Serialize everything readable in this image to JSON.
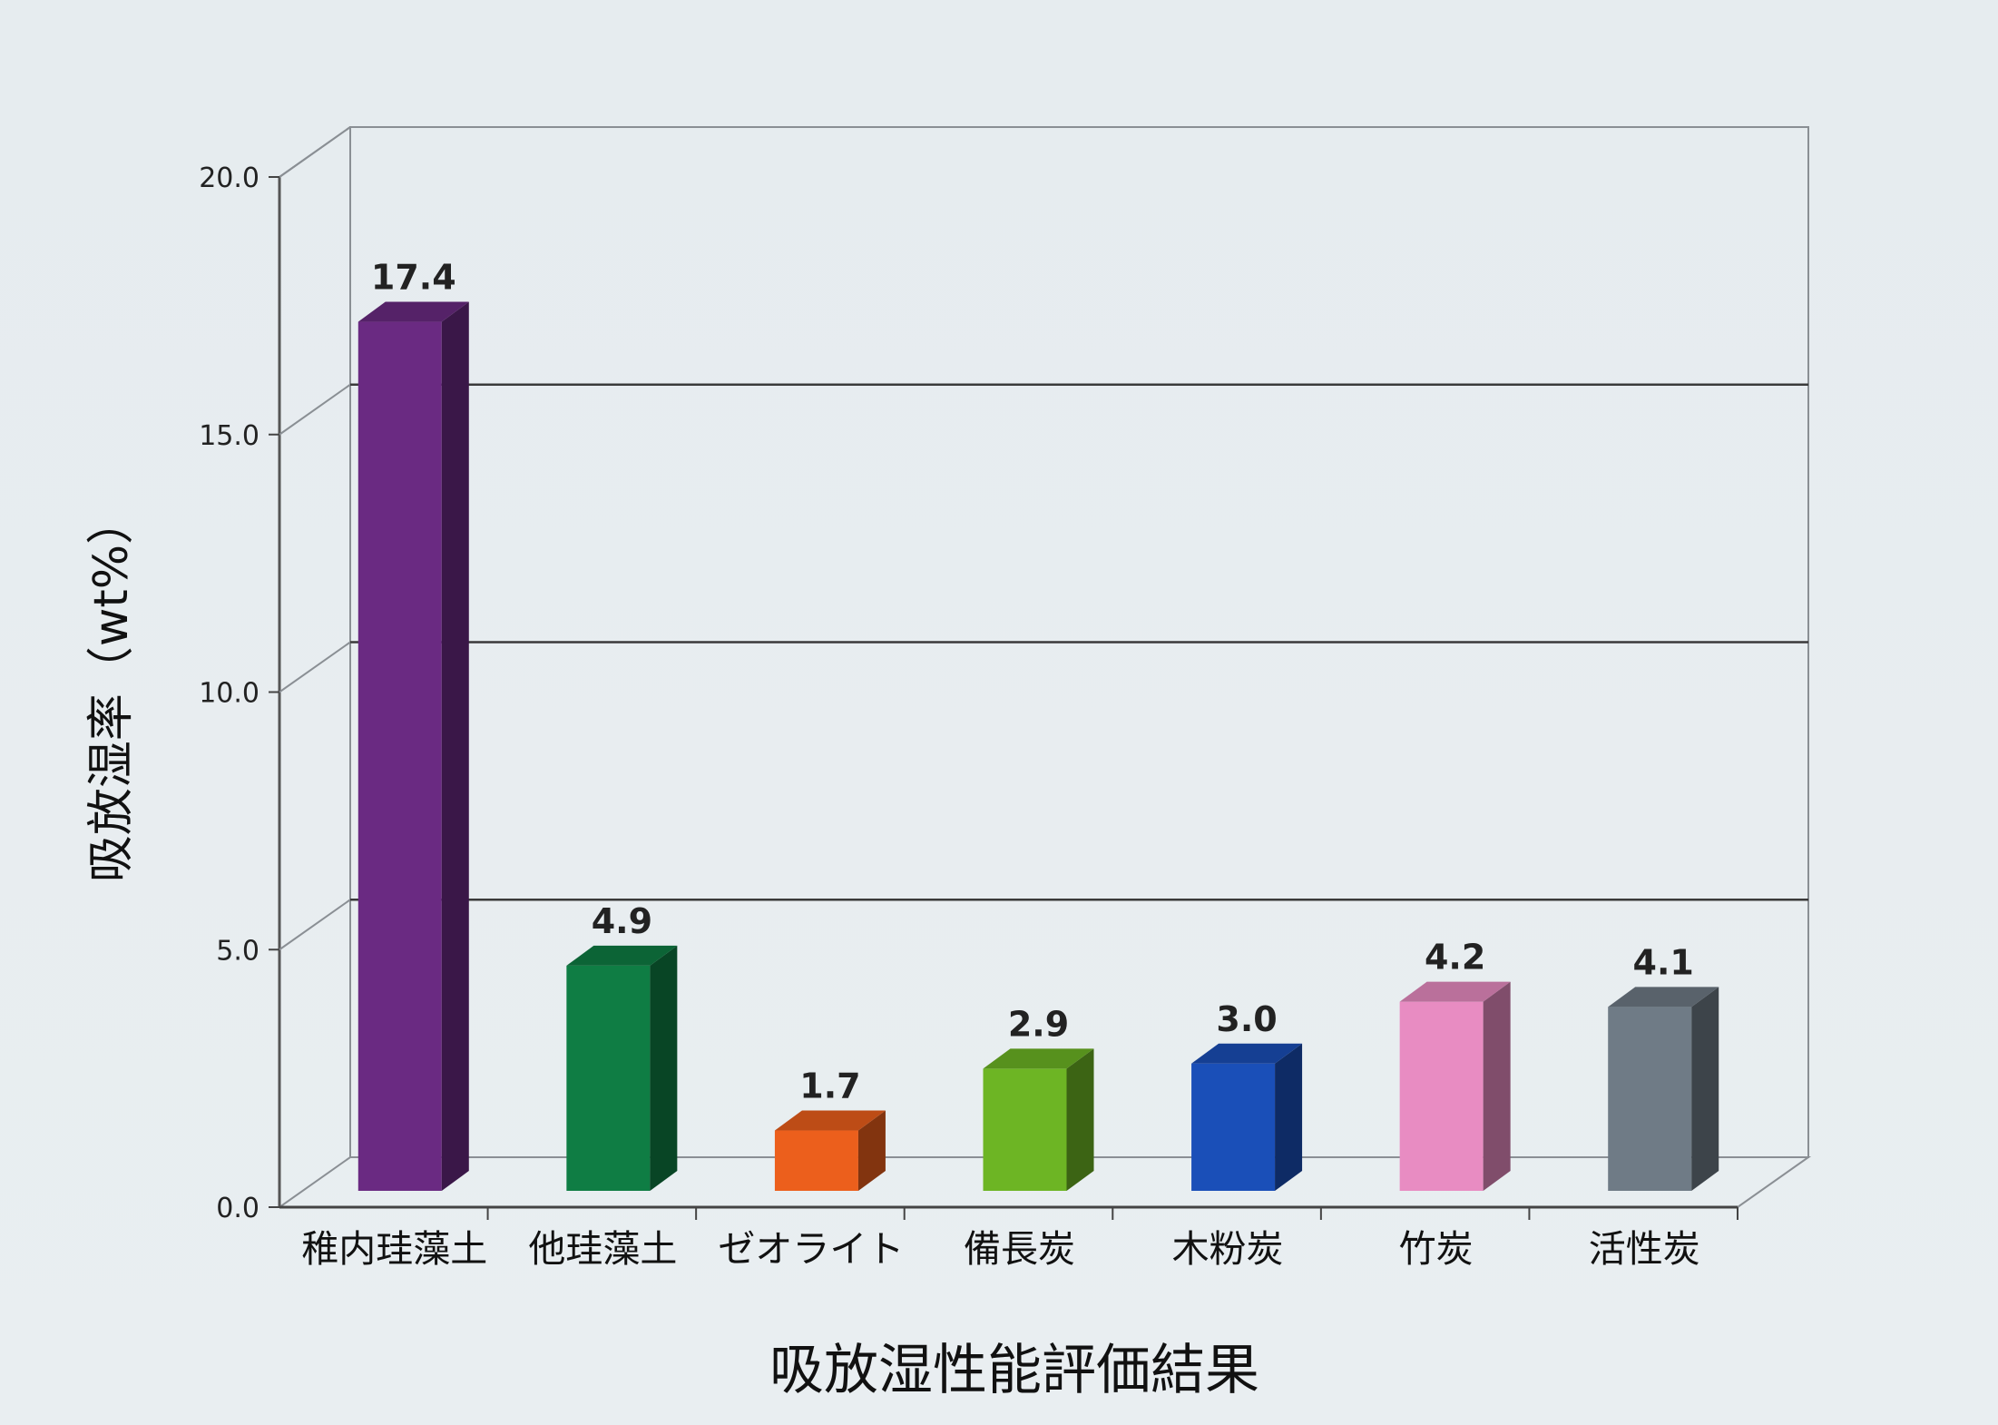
{
  "chart_data": {
    "type": "bar",
    "title": "吸放湿性能評価結果",
    "xlabel": "",
    "ylabel": "吸放湿率（wt%）",
    "ylim": [
      0,
      20
    ],
    "yticks": [
      "0.0",
      "5.0",
      "10.0",
      "15.0",
      "20.0"
    ],
    "categories": [
      "稚内珪藻土",
      "他珪藻土",
      "ゼオライト",
      "備長炭",
      "木粉炭",
      "竹炭",
      "活性炭"
    ],
    "values": [
      17.4,
      4.9,
      1.7,
      2.9,
      3.0,
      4.2,
      4.1
    ],
    "value_labels": [
      "17.4",
      "4.9",
      "1.7",
      "2.9",
      "3.0",
      "4.2",
      "4.1"
    ],
    "colors": [
      "#6a2a82",
      "#0f7d44",
      "#ec5f1c",
      "#6db524",
      "#1a4fb8",
      "#e88cc2",
      "#6f7b86"
    ],
    "grid": true,
    "legend": "none",
    "style": "3d-bars"
  }
}
